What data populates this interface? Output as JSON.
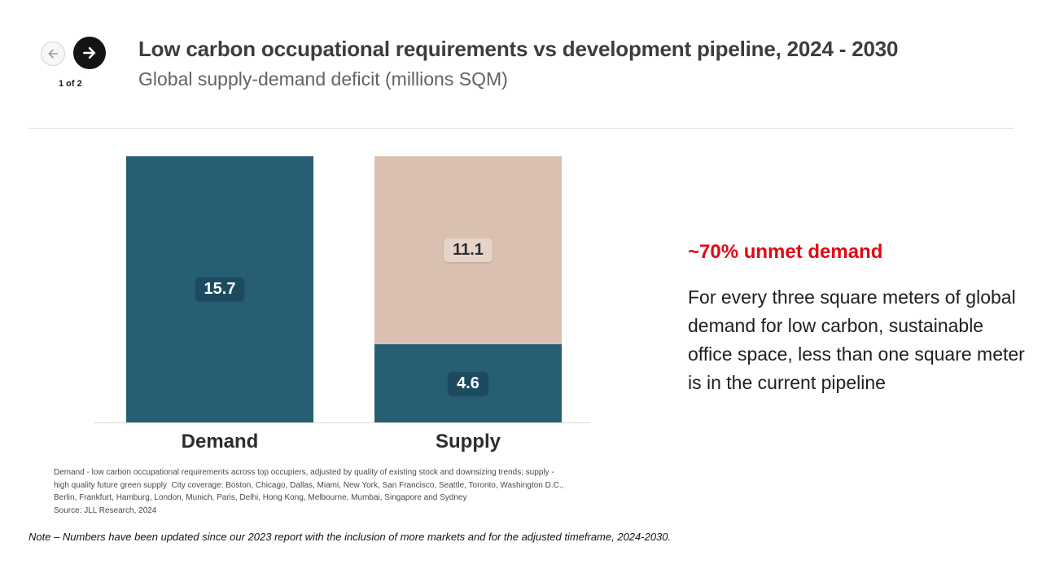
{
  "nav": {
    "page_indicator": "1 of 2",
    "prev_icon": "arrow-left",
    "next_icon": "arrow-right"
  },
  "header": {
    "title": "Low carbon occupational requirements vs development pipeline, 2024 - 2030",
    "subtitle": "Global supply-demand deficit (millions SQM)"
  },
  "colors": {
    "bar_teal": "#275e74",
    "bar_beige": "#d9c0b1",
    "accent_red": "#e30613"
  },
  "chart_data": {
    "type": "bar",
    "stacked": true,
    "title": "Global supply-demand deficit (millions SQM)",
    "unit": "millions SQM",
    "categories": [
      "Demand",
      "Supply"
    ],
    "bars": [
      {
        "category": "Demand",
        "segments": [
          {
            "value": 15.7,
            "color": "#275e74",
            "label_bg": "#1c4b60",
            "label_color": "#ffffff"
          }
        ]
      },
      {
        "category": "Supply",
        "segments": [
          {
            "value": 4.6,
            "color": "#275e74",
            "label_bg": "#1c4b60",
            "label_color": "#ffffff"
          },
          {
            "value": 11.1,
            "color": "#d9c0b1",
            "label_bg": "#e6d4c8",
            "label_color": "#2d2d2d"
          }
        ]
      }
    ],
    "ylim": [
      0,
      15.7
    ],
    "grid": false,
    "legend": false,
    "value_labels": true,
    "annotations": [
      "~70% unmet demand"
    ]
  },
  "callout": {
    "headline": "~70% unmet demand",
    "body": "For every three square meters of global demand for low carbon, sustainable office space, less than one square meter is in the current pipeline"
  },
  "footnote": {
    "lines": [
      "Demand - low carbon occupational requirements across top occupiers, adjusted by quality of existing stock and downsizing trends; supply -",
      "high quality future green supply  City coverage: Boston, Chicago, Dallas, Miami, New York, San Francisco, Seattle, Toronto, Washington D.C.,",
      "Berlin, Frankfurt, Hamburg, London, Munich, Paris, Delhi, Hong Kong, Melbourne, Mumbai, Singapore and Sydney",
      "Source: JLL Research, 2024"
    ]
  },
  "note": "Note – Numbers have been updated since our 2023 report with the inclusion of more markets and for the adjusted timeframe, 2024-2030."
}
